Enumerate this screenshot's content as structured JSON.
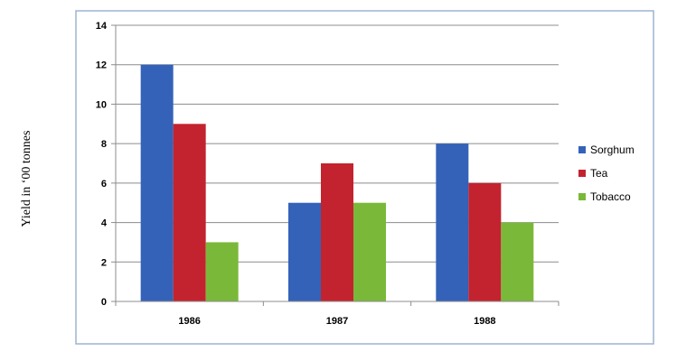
{
  "chart_data": {
    "type": "bar",
    "title": "",
    "xlabel": "",
    "ylabel": "Yield in ‘00 tonnes",
    "categories": [
      "1986",
      "1987",
      "1988"
    ],
    "series": [
      {
        "name": "Sorghum",
        "values": [
          12,
          5,
          8
        ],
        "color": "#3462b8"
      },
      {
        "name": "Tea",
        "values": [
          9,
          7,
          6
        ],
        "color": "#c3232f"
      },
      {
        "name": "Tobacco",
        "values": [
          3,
          5,
          4
        ],
        "color": "#7ab83a"
      }
    ],
    "ylim": [
      0,
      14
    ],
    "yticks": [
      0,
      2,
      4,
      6,
      8,
      10,
      12,
      14
    ],
    "grid": true,
    "legend": "right"
  }
}
